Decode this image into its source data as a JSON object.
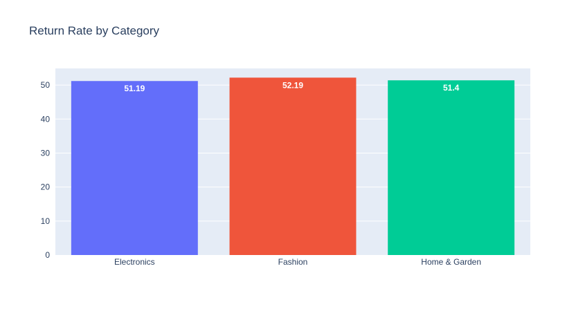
{
  "chart_data": {
    "type": "bar",
    "title": "Return Rate by Category",
    "xlabel": "",
    "ylabel": "",
    "categories": [
      "Electronics",
      "Fashion",
      "Home & Garden"
    ],
    "values": [
      51.19,
      52.19,
      51.4
    ],
    "data_labels": [
      "51.19",
      "52.19",
      "51.4"
    ],
    "colors": [
      "#636efa",
      "#ef553b",
      "#00cc96"
    ],
    "ylim": [
      0,
      54.9
    ],
    "yticks": [
      0,
      10,
      20,
      30,
      40,
      50
    ],
    "grid": true,
    "legend": "none",
    "plot_background": "#e5ecf6"
  }
}
